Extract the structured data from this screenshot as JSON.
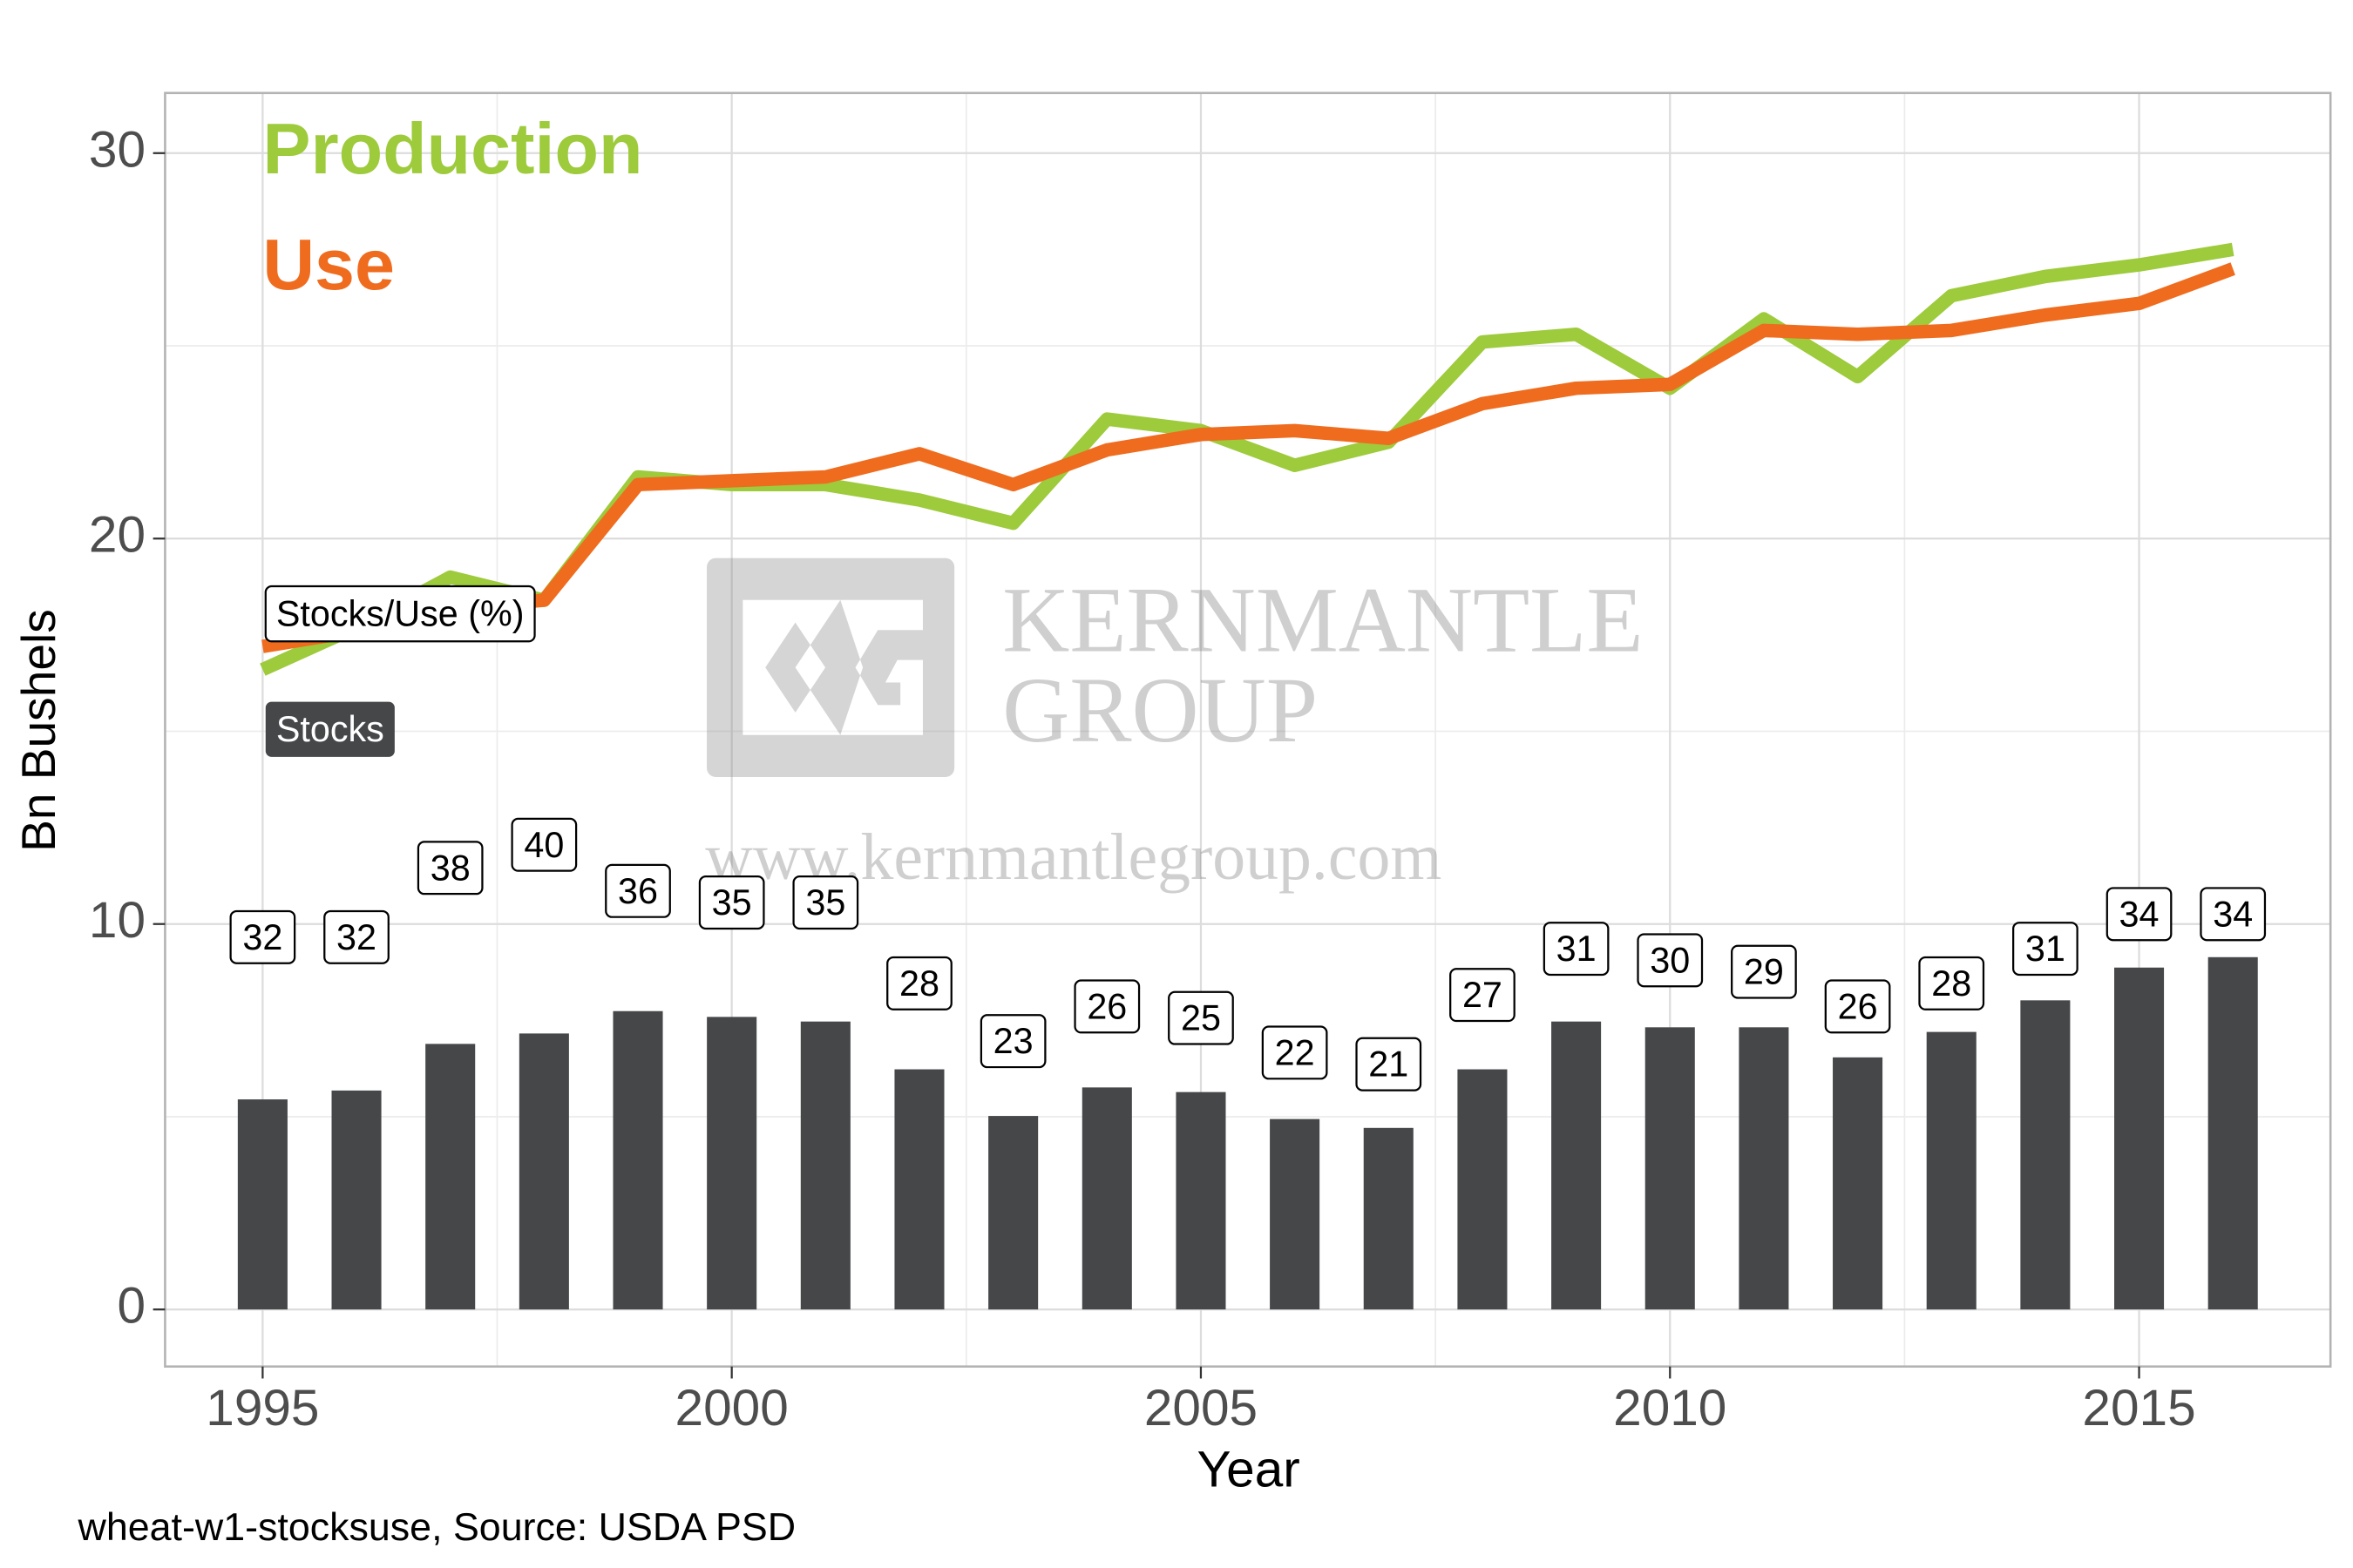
{
  "chart_data": {
    "type": "combo",
    "x": [
      1995,
      1996,
      1997,
      1998,
      1999,
      2000,
      2001,
      2002,
      2003,
      2004,
      2005,
      2006,
      2007,
      2008,
      2009,
      2010,
      2011,
      2012,
      2013,
      2014,
      2015,
      2016
    ],
    "series": [
      {
        "name": "Stocks",
        "type": "bar",
        "color": "#454749",
        "values": [
          5.45,
          5.68,
          6.89,
          7.16,
          7.74,
          7.59,
          7.47,
          6.23,
          5.02,
          5.76,
          5.64,
          4.94,
          4.71,
          6.23,
          7.47,
          7.32,
          7.32,
          6.54,
          7.2,
          8.02,
          8.87,
          9.14
        ]
      },
      {
        "name": "Production",
        "type": "line",
        "color": "#9dcb3c",
        "values": [
          16.6,
          17.7,
          19.0,
          18.4,
          21.6,
          21.4,
          21.4,
          21.0,
          20.4,
          23.1,
          22.8,
          21.9,
          22.5,
          25.1,
          25.3,
          23.9,
          25.7,
          24.2,
          26.3,
          26.8,
          27.1,
          27.5
        ]
      },
      {
        "name": "Use",
        "type": "line",
        "color": "#ef6c1f",
        "values": [
          17.2,
          17.6,
          18.2,
          18.4,
          21.4,
          21.5,
          21.6,
          22.2,
          21.4,
          22.3,
          22.7,
          22.8,
          22.6,
          23.5,
          23.9,
          24.0,
          25.4,
          25.3,
          25.4,
          25.8,
          26.1,
          27.0
        ]
      },
      {
        "name": "Stocks/Use (%)",
        "type": "label",
        "color": "#000000",
        "values": [
          32,
          32,
          38,
          40,
          36,
          35,
          35,
          28,
          23,
          26,
          25,
          22,
          21,
          27,
          31,
          30,
          29,
          26,
          28,
          31,
          34,
          34
        ]
      }
    ],
    "xlabel": "Year",
    "ylabel": "Bn Bushels",
    "xlim": [
      1993.96,
      2017.04
    ],
    "xticks": [
      1995,
      2000,
      2005,
      2010,
      2015
    ],
    "ylim": [
      -1.48,
      31.56
    ],
    "yticks": [
      0,
      10,
      20,
      30
    ],
    "grid": true,
    "watermark": {
      "line1": "KERNMANTLE",
      "line2": "GROUP",
      "url": "www.kernmantlegroup.com"
    },
    "caption": "wheat-w1-stocksuse, Source: USDA PSD"
  }
}
